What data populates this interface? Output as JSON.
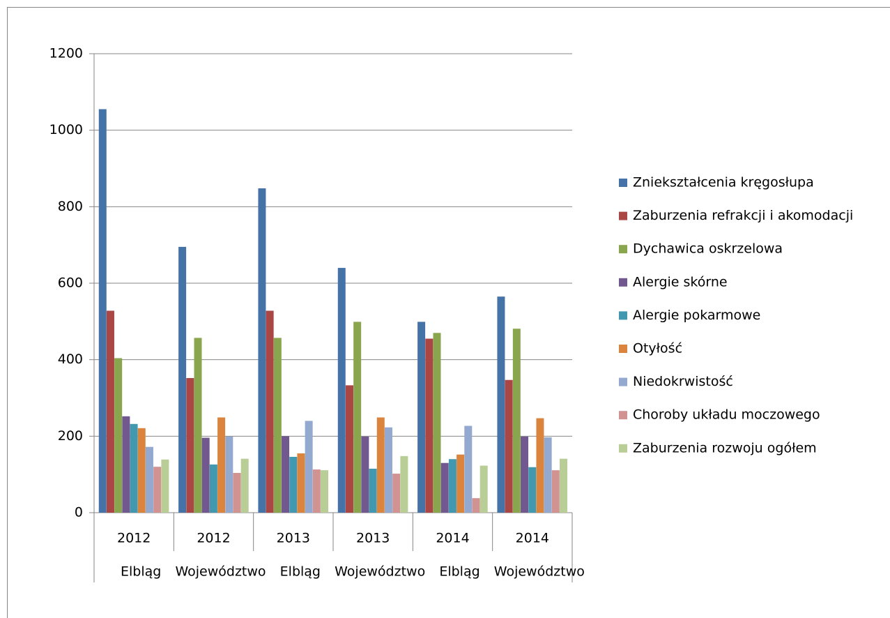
{
  "chart_data": {
    "type": "bar",
    "categories": [
      "2012",
      "2012",
      "2013",
      "2013",
      "2014",
      "2014"
    ],
    "category_groups": [
      "Elbląg",
      "Województwo",
      "Elbląg",
      "Województwo",
      "Elbląg",
      "Województwo"
    ],
    "ylim": [
      0,
      1200
    ],
    "yticks": [
      0,
      200,
      400,
      600,
      800,
      1000,
      1200
    ],
    "grid": true,
    "legend": "right",
    "series": [
      {
        "name": "Zniekształcenia kręgosłupa",
        "color": "#4572a7",
        "values": [
          1055,
          695,
          848,
          640,
          499,
          565
        ]
      },
      {
        "name": "Zaburzenia refrakcji i akomodacji",
        "color": "#aa4643",
        "values": [
          528,
          352,
          528,
          333,
          455,
          347
        ]
      },
      {
        "name": "Dychawica oskrzelowa",
        "color": "#89a54e",
        "values": [
          404,
          457,
          457,
          499,
          470,
          481
        ]
      },
      {
        "name": "Alergie skórne",
        "color": "#71588f",
        "values": [
          252,
          196,
          200,
          199,
          130,
          199
        ]
      },
      {
        "name": "Alergie pokarmowe",
        "color": "#4198af",
        "values": [
          232,
          126,
          146,
          115,
          140,
          119
        ]
      },
      {
        "name": "Otyłość",
        "color": "#db843d",
        "values": [
          221,
          249,
          155,
          249,
          152,
          247
        ]
      },
      {
        "name": "Niedokrwistość",
        "color": "#93a9cf",
        "values": [
          172,
          199,
          240,
          223,
          227,
          197
        ]
      },
      {
        "name": "Choroby układu moczowego",
        "color": "#d19392",
        "values": [
          120,
          104,
          113,
          102,
          38,
          111
        ]
      },
      {
        "name": "Zaburzenia rozwoju ogółem",
        "color": "#b9cd96",
        "values": [
          139,
          141,
          111,
          148,
          123,
          141
        ]
      }
    ]
  }
}
